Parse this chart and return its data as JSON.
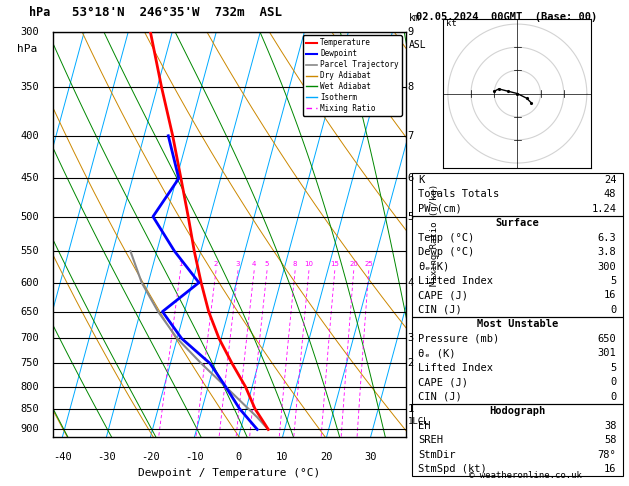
{
  "title_sounding": "53°18'N  246°35'W  732m  ASL",
  "title_date": "02.05.2024  00GMT  (Base: 00)",
  "xlabel": "Dewpoint / Temperature (°C)",
  "ylabel_left": "hPa",
  "pmin": 300,
  "pmax": 920,
  "tmin": -42,
  "tmax": 38,
  "skew": 25,
  "pressure_levels": [
    300,
    350,
    400,
    450,
    500,
    550,
    600,
    650,
    700,
    750,
    800,
    850,
    900
  ],
  "temp_profile": {
    "pressure": [
      900,
      850,
      800,
      750,
      700,
      650,
      600,
      550,
      500,
      450,
      400,
      350,
      300
    ],
    "temperature": [
      6.3,
      2.0,
      -1.5,
      -6.0,
      -10.5,
      -14.5,
      -18.0,
      -21.5,
      -25.0,
      -29.0,
      -33.5,
      -39.0,
      -45.0
    ]
  },
  "dewpoint_profile": {
    "pressure": [
      900,
      850,
      800,
      750,
      700,
      650,
      600,
      550,
      500,
      450,
      400
    ],
    "dewpoint": [
      3.8,
      -1.5,
      -6.0,
      -11.0,
      -19.0,
      -25.0,
      -18.5,
      -26.0,
      -33.0,
      -29.5,
      -34.5
    ]
  },
  "parcel_profile": {
    "pressure": [
      900,
      870,
      850,
      800,
      750,
      700,
      650,
      600,
      550
    ],
    "temperature": [
      6.3,
      3.0,
      0.5,
      -6.0,
      -13.0,
      -20.0,
      -26.0,
      -31.5,
      -36.0
    ]
  },
  "mixing_ratio_values": [
    1,
    2,
    3,
    4,
    5,
    8,
    10,
    15,
    20,
    25
  ],
  "mixing_ratio_color": "#ff00ff",
  "dry_adiabat_color": "#cc8800",
  "wet_adiabat_color": "#008800",
  "isotherm_color": "#00aaff",
  "temp_color": "#ff0000",
  "dewpoint_color": "#0000ff",
  "parcel_color": "#888888",
  "lcl_pressure": 880,
  "shown_km": {
    "300": "9",
    "350": "8",
    "400": "7",
    "450": "6",
    "500": "5",
    "600": "4",
    "700": "3",
    "750": "2",
    "850": "1"
  },
  "info_K": 24,
  "info_TT": 48,
  "info_PW": "1.24",
  "surf_temp": "6.3",
  "surf_dewp": "3.8",
  "surf_theta_e": 300,
  "surf_li": 5,
  "surf_cape": 16,
  "surf_cin": 0,
  "mu_pressure": 650,
  "mu_theta_e": 301,
  "mu_li": 5,
  "mu_cape": 0,
  "mu_cin": 0,
  "hodo_EH": 38,
  "hodo_SREH": 58,
  "hodo_StmDir": "78°",
  "hodo_StmSpd": 16,
  "copyright": "© weatheronline.co.uk"
}
